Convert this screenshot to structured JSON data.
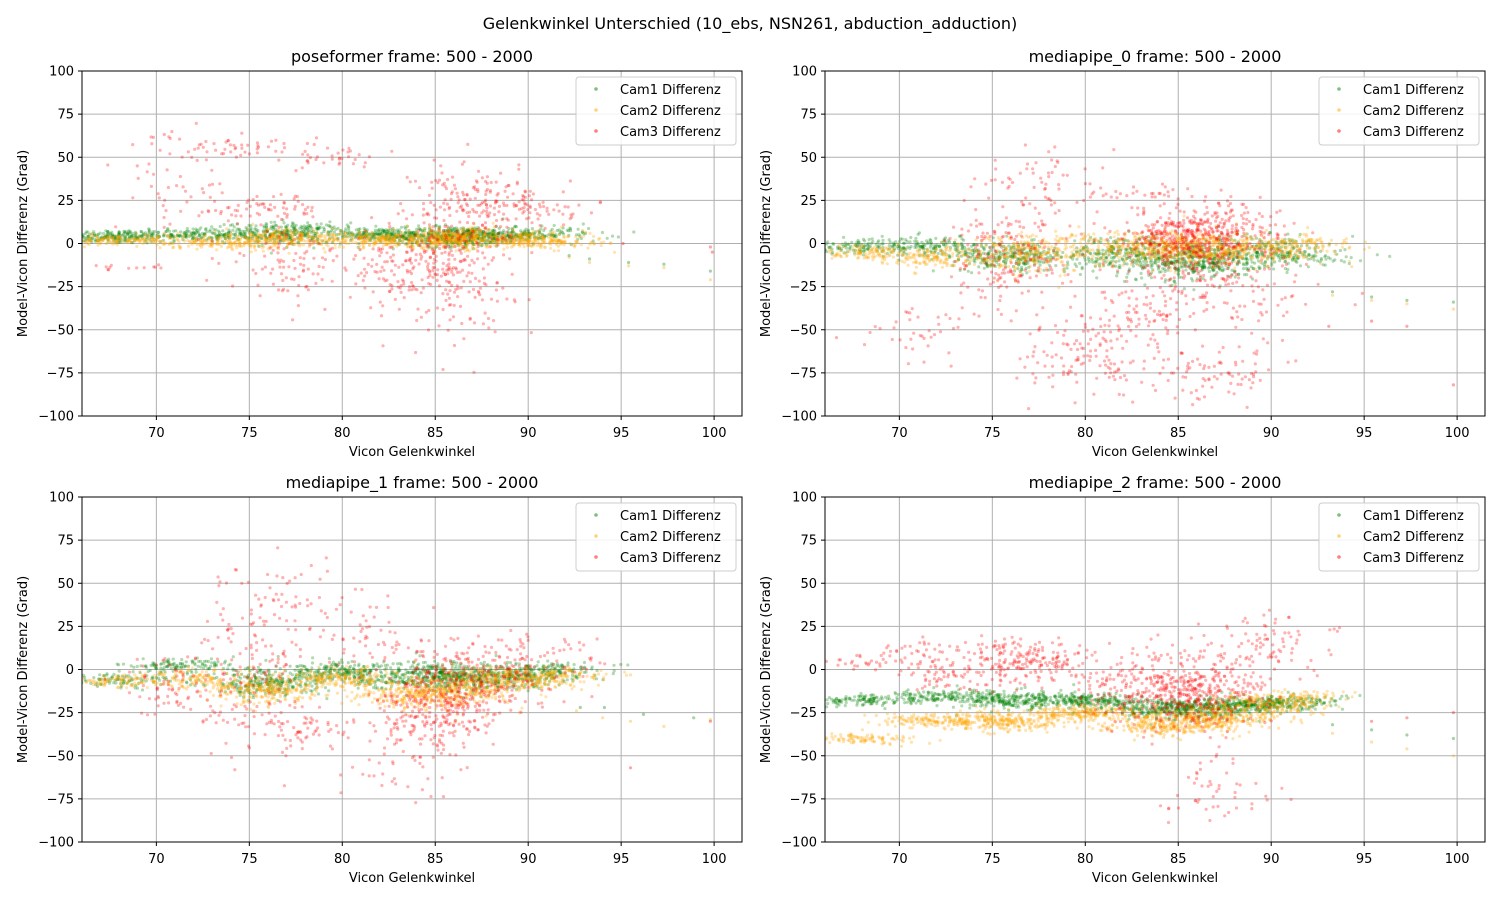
{
  "figure": {
    "suptitle": "Gelenkwinkel Unterschied (10_ebs, NSN261, abduction_adduction)"
  },
  "colors": {
    "cam1": "#008000",
    "cam2": "#ffa500",
    "cam3": "#ff0000",
    "grid": "#b0b0b0"
  },
  "chart_data": [
    {
      "type": "scatter",
      "title": "poseformer frame: 500 - 2000",
      "xlabel": "Vicon Gelenkwinkel",
      "ylabel": "Model-Vicon Differenz (Grad)",
      "xlim": [
        66,
        101.5
      ],
      "ylim": [
        -100,
        100
      ],
      "xticks": [
        70,
        75,
        80,
        85,
        90,
        95,
        100
      ],
      "yticks": [
        -100,
        -75,
        -50,
        -25,
        0,
        25,
        50,
        75,
        100
      ],
      "grid": true,
      "legend_position": "top-right",
      "series": [
        {
          "name": "Cam1 Differenz",
          "color": "#008000",
          "clusters": [
            [
              67.5,
              4,
              2,
              200
            ],
            [
              72,
              5,
              2,
              180
            ],
            [
              77,
              6,
              3,
              300
            ],
            [
              82,
              5,
              2,
              200
            ],
            [
              86,
              4,
              3,
              400
            ],
            [
              89,
              5,
              2,
              200
            ],
            [
              92,
              6,
              2,
              40
            ]
          ],
          "points": [
            [
              92.2,
              -7
            ],
            [
              93.3,
              -9
            ],
            [
              95.4,
              -11
            ],
            [
              97.3,
              -12
            ],
            [
              99.8,
              -16
            ]
          ]
        },
        {
          "name": "Cam2 Differenz",
          "color": "#ffa500",
          "clusters": [
            [
              68,
              2,
              1.5,
              150
            ],
            [
              73,
              1,
              2,
              150
            ],
            [
              77,
              3,
              3,
              250
            ],
            [
              82,
              2,
              2,
              200
            ],
            [
              86,
              3,
              3,
              400
            ],
            [
              90,
              2,
              2,
              200
            ],
            [
              92,
              0,
              1.5,
              40
            ]
          ],
          "points": [
            [
              92.2,
              -8
            ],
            [
              93.3,
              -11
            ],
            [
              95.4,
              -13
            ],
            [
              97.3,
              -14
            ],
            [
              99.8,
              -21
            ]
          ]
        },
        {
          "name": "Cam3 Differenz",
          "color": "#ff0000",
          "clusters": [
            [
              67.8,
              -14,
              1,
              15
            ],
            [
              71,
              35,
              14,
              50
            ],
            [
              74,
              55,
              3,
              40
            ],
            [
              76,
              20,
              4,
              60
            ],
            [
              77,
              -10,
              10,
              90
            ],
            [
              79,
              50,
              4,
              40
            ],
            [
              83,
              -15,
              10,
              120
            ],
            [
              86,
              -10,
              20,
              250
            ],
            [
              87,
              25,
              12,
              110
            ],
            [
              89,
              20,
              10,
              60
            ],
            [
              91,
              20,
              3,
              30
            ]
          ],
          "points": [
            [
              99.8,
              -2
            ],
            [
              99.9,
              -5
            ],
            [
              95.1,
              0
            ]
          ]
        }
      ]
    },
    {
      "type": "scatter",
      "title": "mediapipe_0 frame: 500 - 2000",
      "xlabel": "Vicon Gelenkwinkel",
      "ylabel": "Model-Vicon Differenz (Grad)",
      "xlim": [
        66,
        101.5
      ],
      "ylim": [
        -100,
        100
      ],
      "xticks": [
        70,
        75,
        80,
        85,
        90,
        95,
        100
      ],
      "yticks": [
        -100,
        -75,
        -50,
        -25,
        0,
        25,
        50,
        75,
        100
      ],
      "grid": true,
      "legend_position": "top-right",
      "series": [
        {
          "name": "Cam1 Differenz",
          "color": "#008000",
          "clusters": [
            [
              68,
              -2,
              2,
              120
            ],
            [
              72,
              -2,
              3,
              150
            ],
            [
              76,
              -8,
              4,
              250
            ],
            [
              82,
              -6,
              5,
              250
            ],
            [
              86,
              -10,
              6,
              400
            ],
            [
              90,
              -5,
              5,
              200
            ],
            [
              92,
              -8,
              2,
              40
            ]
          ],
          "points": [
            [
              93.3,
              -28
            ],
            [
              95.4,
              -31
            ],
            [
              97.3,
              -33
            ],
            [
              99.8,
              -34
            ]
          ]
        },
        {
          "name": "Cam2 Differenz",
          "color": "#ffa500",
          "clusters": [
            [
              68,
              -5,
              2,
              120
            ],
            [
              72,
              -8,
              3,
              150
            ],
            [
              77,
              -5,
              6,
              250
            ],
            [
              82,
              -3,
              5,
              200
            ],
            [
              86,
              -3,
              5,
              400
            ],
            [
              90,
              -2,
              4,
              200
            ],
            [
              92,
              0,
              1.5,
              40
            ]
          ],
          "points": [
            [
              93.3,
              -30
            ],
            [
              95.4,
              -33
            ],
            [
              97.3,
              -35
            ],
            [
              99.8,
              -38
            ]
          ]
        },
        {
          "name": "Cam3 Differenz",
          "color": "#ff0000",
          "clusters": [
            [
              76,
              -10,
              15,
              180
            ],
            [
              77,
              35,
              10,
              60
            ],
            [
              80,
              -65,
              12,
              120
            ],
            [
              83,
              30,
              2,
              30
            ],
            [
              85,
              5,
              7,
              250
            ],
            [
              86,
              -10,
              15,
              200
            ],
            [
              88,
              8,
              8,
              150
            ],
            [
              87,
              -75,
              8,
              80
            ],
            [
              90,
              -30,
              15,
              60
            ],
            [
              71,
              -55,
              10,
              40
            ],
            [
              83,
              -40,
              15,
              100
            ]
          ],
          "points": [
            [
              99.8,
              -82
            ],
            [
              97.3,
              -48
            ],
            [
              95.4,
              -45
            ],
            [
              93.1,
              -48
            ]
          ]
        }
      ]
    },
    {
      "type": "scatter",
      "title": "mediapipe_1 frame: 500 - 2000",
      "xlabel": "Vicon Gelenkwinkel",
      "ylabel": "Model-Vicon Differenz (Grad)",
      "xlim": [
        66,
        101.5
      ],
      "ylim": [
        -100,
        100
      ],
      "xticks": [
        70,
        75,
        80,
        85,
        90,
        95,
        100
      ],
      "yticks": [
        -100,
        -75,
        -50,
        -25,
        0,
        25,
        50,
        75,
        100
      ],
      "grid": true,
      "legend_position": "top-right",
      "series": [
        {
          "name": "Cam1 Differenz",
          "color": "#008000",
          "clusters": [
            [
              68,
              -6,
              2,
              100
            ],
            [
              71,
              2,
              2,
              120
            ],
            [
              76,
              -8,
              4,
              250
            ],
            [
              80,
              -2,
              3,
              200
            ],
            [
              84,
              -3,
              4,
              250
            ],
            [
              87,
              -5,
              4,
              300
            ],
            [
              90,
              -3,
              3,
              200
            ],
            [
              92,
              2,
              1.5,
              40
            ]
          ],
          "points": [
            [
              92.8,
              -22
            ],
            [
              94.1,
              -22
            ],
            [
              96.2,
              -26
            ],
            [
              98.9,
              -28
            ]
          ]
        },
        {
          "name": "Cam2 Differenz",
          "color": "#ffa500",
          "clusters": [
            [
              68,
              -7,
              2,
              100
            ],
            [
              72,
              -5,
              3,
              120
            ],
            [
              76,
              -12,
              4,
              250
            ],
            [
              80,
              -5,
              3,
              200
            ],
            [
              84,
              -15,
              4,
              250
            ],
            [
              87,
              -10,
              5,
              300
            ],
            [
              90,
              -5,
              3,
              200
            ],
            [
              92,
              -3,
              1.5,
              40
            ]
          ],
          "points": [
            [
              92.6,
              -24
            ],
            [
              94.0,
              -28
            ],
            [
              95.5,
              -30
            ],
            [
              97.3,
              -33
            ],
            [
              99.8,
              -29
            ]
          ]
        },
        {
          "name": "Cam3 Differenz",
          "color": "#ff0000",
          "clusters": [
            [
              71,
              -10,
              10,
              60
            ],
            [
              75,
              -5,
              20,
              150
            ],
            [
              77,
              40,
              12,
              60
            ],
            [
              78,
              -35,
              6,
              60
            ],
            [
              82,
              15,
              10,
              60
            ],
            [
              84,
              -30,
              15,
              150
            ],
            [
              86,
              -15,
              12,
              250
            ],
            [
              88,
              0,
              10,
              120
            ],
            [
              91,
              5,
              10,
              60
            ],
            [
              83,
              -60,
              8,
              20
            ]
          ],
          "points": [
            [
              99.8,
              -30
            ],
            [
              95.5,
              -57
            ]
          ]
        }
      ]
    },
    {
      "type": "scatter",
      "title": "mediapipe_2 frame: 500 - 2000",
      "xlabel": "Vicon Gelenkwinkel",
      "ylabel": "Model-Vicon Differenz (Grad)",
      "xlim": [
        66,
        101.5
      ],
      "ylim": [
        -100,
        100
      ],
      "xticks": [
        70,
        75,
        80,
        85,
        90,
        95,
        100
      ],
      "yticks": [
        -100,
        -75,
        -50,
        -25,
        0,
        25,
        50,
        75,
        100
      ],
      "grid": true,
      "legend_position": "top-right",
      "series": [
        {
          "name": "Cam1 Differenz",
          "color": "#008000",
          "clusters": [
            [
              68,
              -18,
              1.5,
              120
            ],
            [
              72,
              -16,
              2,
              150
            ],
            [
              76,
              -18,
              3,
              250
            ],
            [
              80,
              -18,
              2,
              200
            ],
            [
              84,
              -23,
              3,
              250
            ],
            [
              87,
              -22,
              3,
              300
            ],
            [
              90,
              -20,
              2,
              200
            ],
            [
              92,
              -17,
              1.5,
              40
            ]
          ],
          "points": [
            [
              93.3,
              -32
            ],
            [
              95.4,
              -35
            ],
            [
              97.3,
              -38
            ],
            [
              99.8,
              -40
            ]
          ]
        },
        {
          "name": "Cam2 Differenz",
          "color": "#ffa500",
          "clusters": [
            [
              68,
              -40,
              1.5,
              100
            ],
            [
              72,
              -30,
              2,
              150
            ],
            [
              76,
              -30,
              3,
              250
            ],
            [
              80,
              -25,
              2,
              200
            ],
            [
              84,
              -32,
              3,
              250
            ],
            [
              87,
              -28,
              4,
              300
            ],
            [
              90,
              -20,
              3,
              200
            ],
            [
              92,
              -15,
              1.5,
              40
            ]
          ],
          "points": [
            [
              93.3,
              -37
            ],
            [
              95.4,
              -42
            ],
            [
              97.3,
              -46
            ],
            [
              99.8,
              -50
            ]
          ]
        },
        {
          "name": "Cam3 Differenz",
          "color": "#ff0000",
          "clusters": [
            [
              68,
              5,
              2,
              40
            ],
            [
              71,
              12,
              3,
              30
            ],
            [
              73,
              -2,
              5,
              80
            ],
            [
              76,
              5,
              8,
              120
            ],
            [
              78,
              5,
              5,
              80
            ],
            [
              83,
              -10,
              10,
              200
            ],
            [
              86,
              -15,
              10,
              250
            ],
            [
              88,
              -5,
              12,
              120
            ],
            [
              90,
              15,
              8,
              60
            ],
            [
              87,
              -70,
              10,
              50
            ]
          ],
          "points": [
            [
              99.8,
              -25
            ],
            [
              97.3,
              -28
            ],
            [
              95.4,
              -30
            ]
          ]
        }
      ]
    }
  ]
}
